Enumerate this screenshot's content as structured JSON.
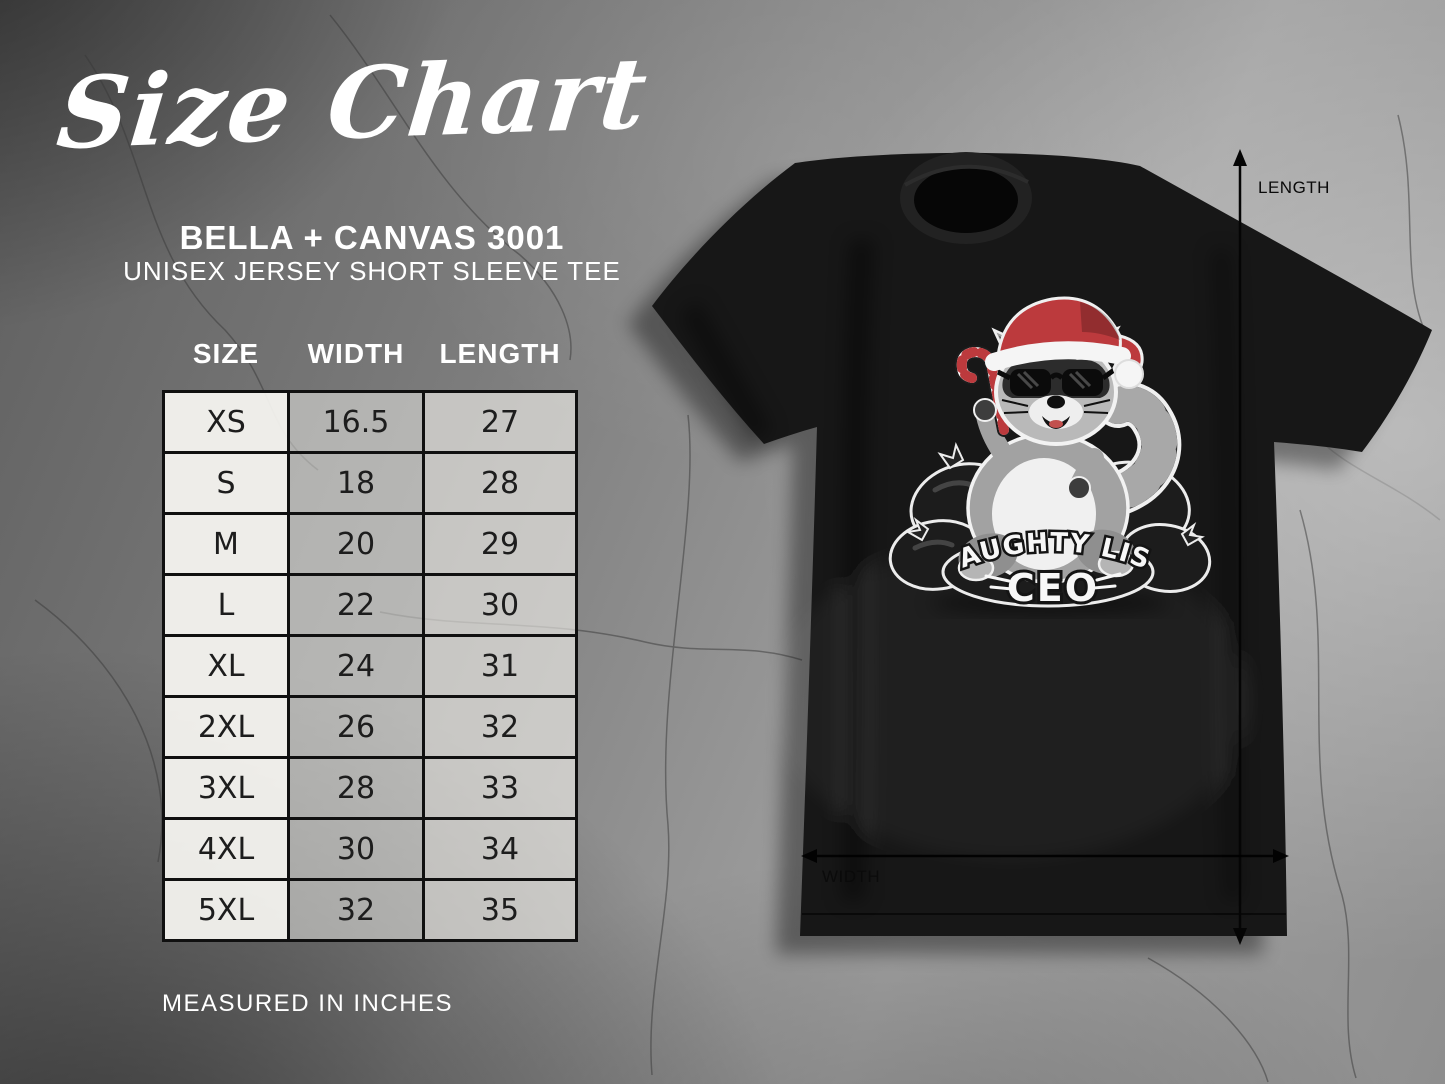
{
  "chart_data": {
    "type": "table",
    "title": "Size Chart",
    "brand": "BELLA + CANVAS 3001",
    "product": "UNISEX JERSEY SHORT SLEEVE TEE",
    "columns": [
      "SIZE",
      "WIDTH",
      "LENGTH"
    ],
    "rows": [
      [
        "XS",
        "16.5",
        "27"
      ],
      [
        "S",
        "18",
        "28"
      ],
      [
        "M",
        "20",
        "29"
      ],
      [
        "L",
        "22",
        "30"
      ],
      [
        "XL",
        "24",
        "31"
      ],
      [
        "2XL",
        "26",
        "32"
      ],
      [
        "3XL",
        "28",
        "33"
      ],
      [
        "4XL",
        "30",
        "34"
      ],
      [
        "5XL",
        "32",
        "35"
      ]
    ],
    "footnote": "MEASURED IN INCHES",
    "units": "inches"
  },
  "mockup": {
    "design_line1": "NAUGHTY LIST",
    "design_line2": "CEO",
    "length_label": "LENGTH",
    "width_label": "WIDTH"
  },
  "colors": {
    "accent_red": "#bc3a3d",
    "shirt_black": "#171717",
    "table_text": "#1d1d1d",
    "light_text": "#ffffff"
  }
}
